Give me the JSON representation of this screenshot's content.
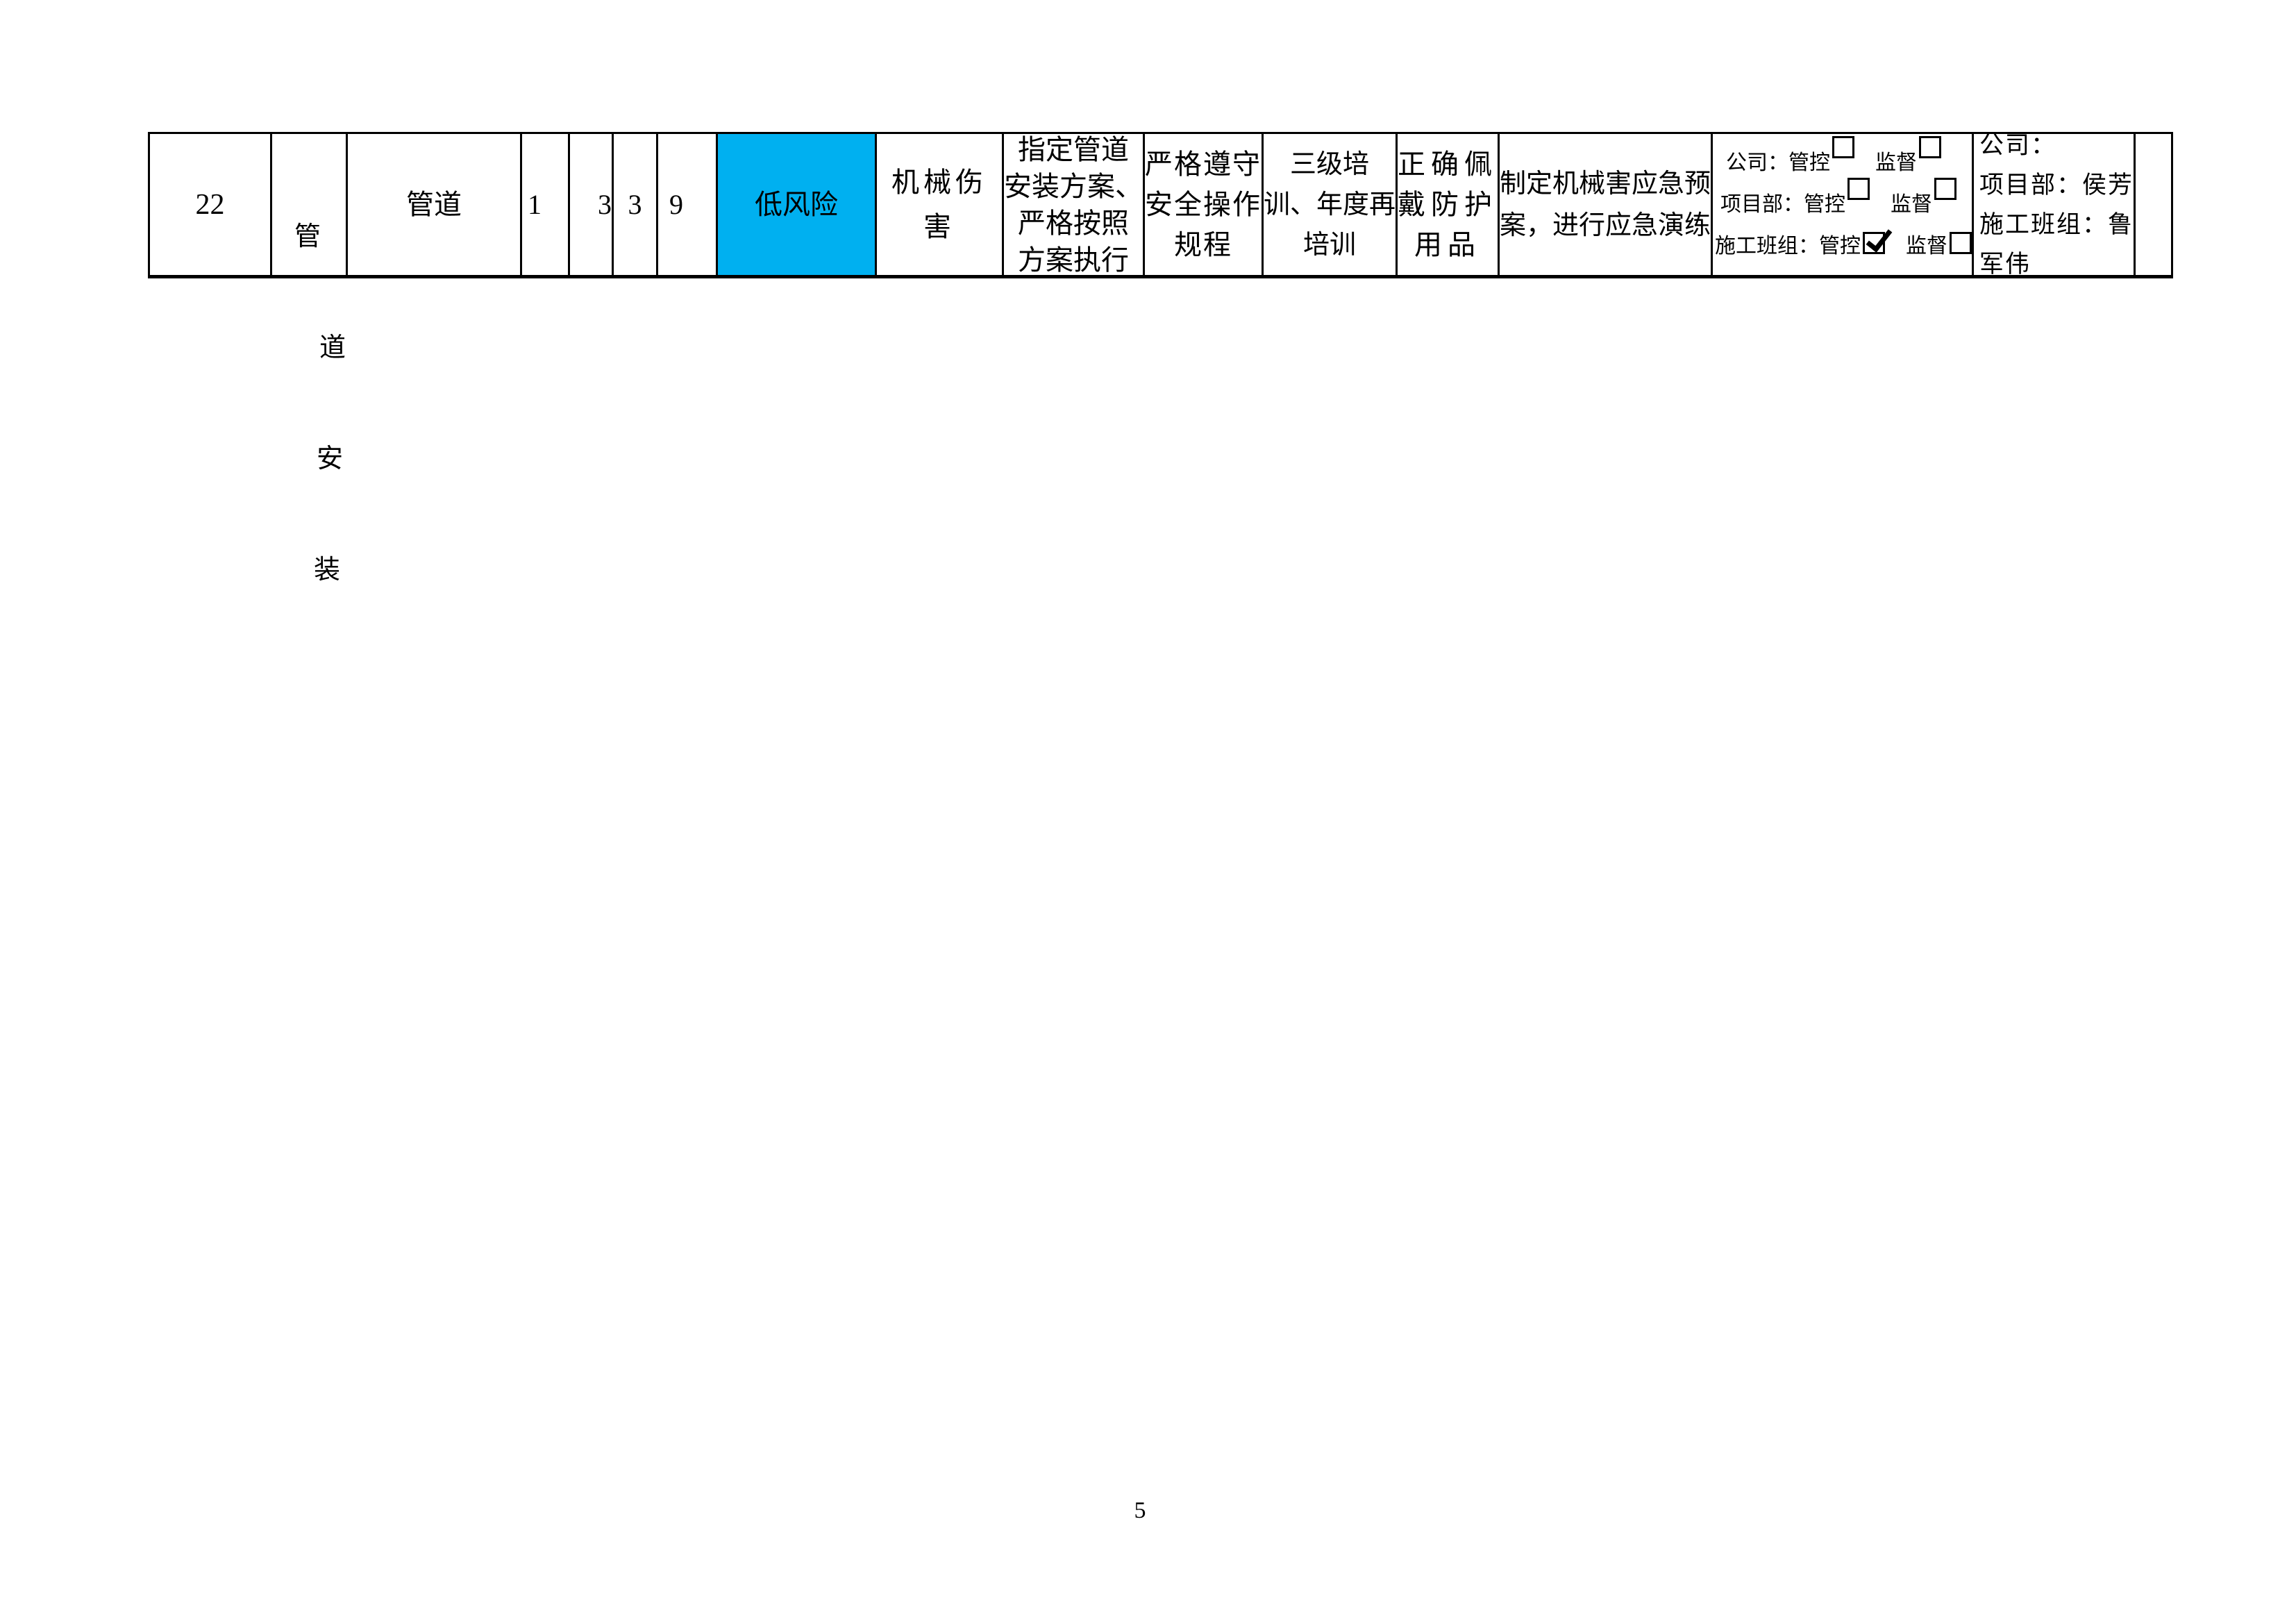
{
  "page": {
    "number": "5"
  },
  "table": {
    "row": {
      "seq": "22",
      "activity_chars": [
        "管",
        "道",
        "安",
        "装"
      ],
      "item": "管道",
      "l_value": "1",
      "e_value": "3",
      "c_value": "3",
      "d_value": "9",
      "risk_level": "低风险",
      "risk_color": "#00b0f0",
      "hazard": "机械伤\n害",
      "engineering_measure": "指定管道\n安装方案、\n严格按照\n方案执行",
      "admin_measure": "严格遵守\n安全操作\n规程",
      "training_measure": "三级培\n训、年度再\n培训",
      "ppe_measure": "正确佩\n戴防护\n用品",
      "emergency_measure": "制定机械害应急预\n案，进行应急演练",
      "control": {
        "rows": [
          {
            "label1": "公司：管控",
            "box1": false,
            "label2": "监督",
            "box2": false
          },
          {
            "label1": "项目部：管控",
            "box1": false,
            "label2": "监督",
            "box2": false
          },
          {
            "label1": "施工班组：管控",
            "box1": true,
            "label2": "监督",
            "box2": false
          }
        ]
      },
      "responsible": "公司：\n项目部：侯芳\n施工班组：鲁\n军伟",
      "remark": ""
    }
  }
}
